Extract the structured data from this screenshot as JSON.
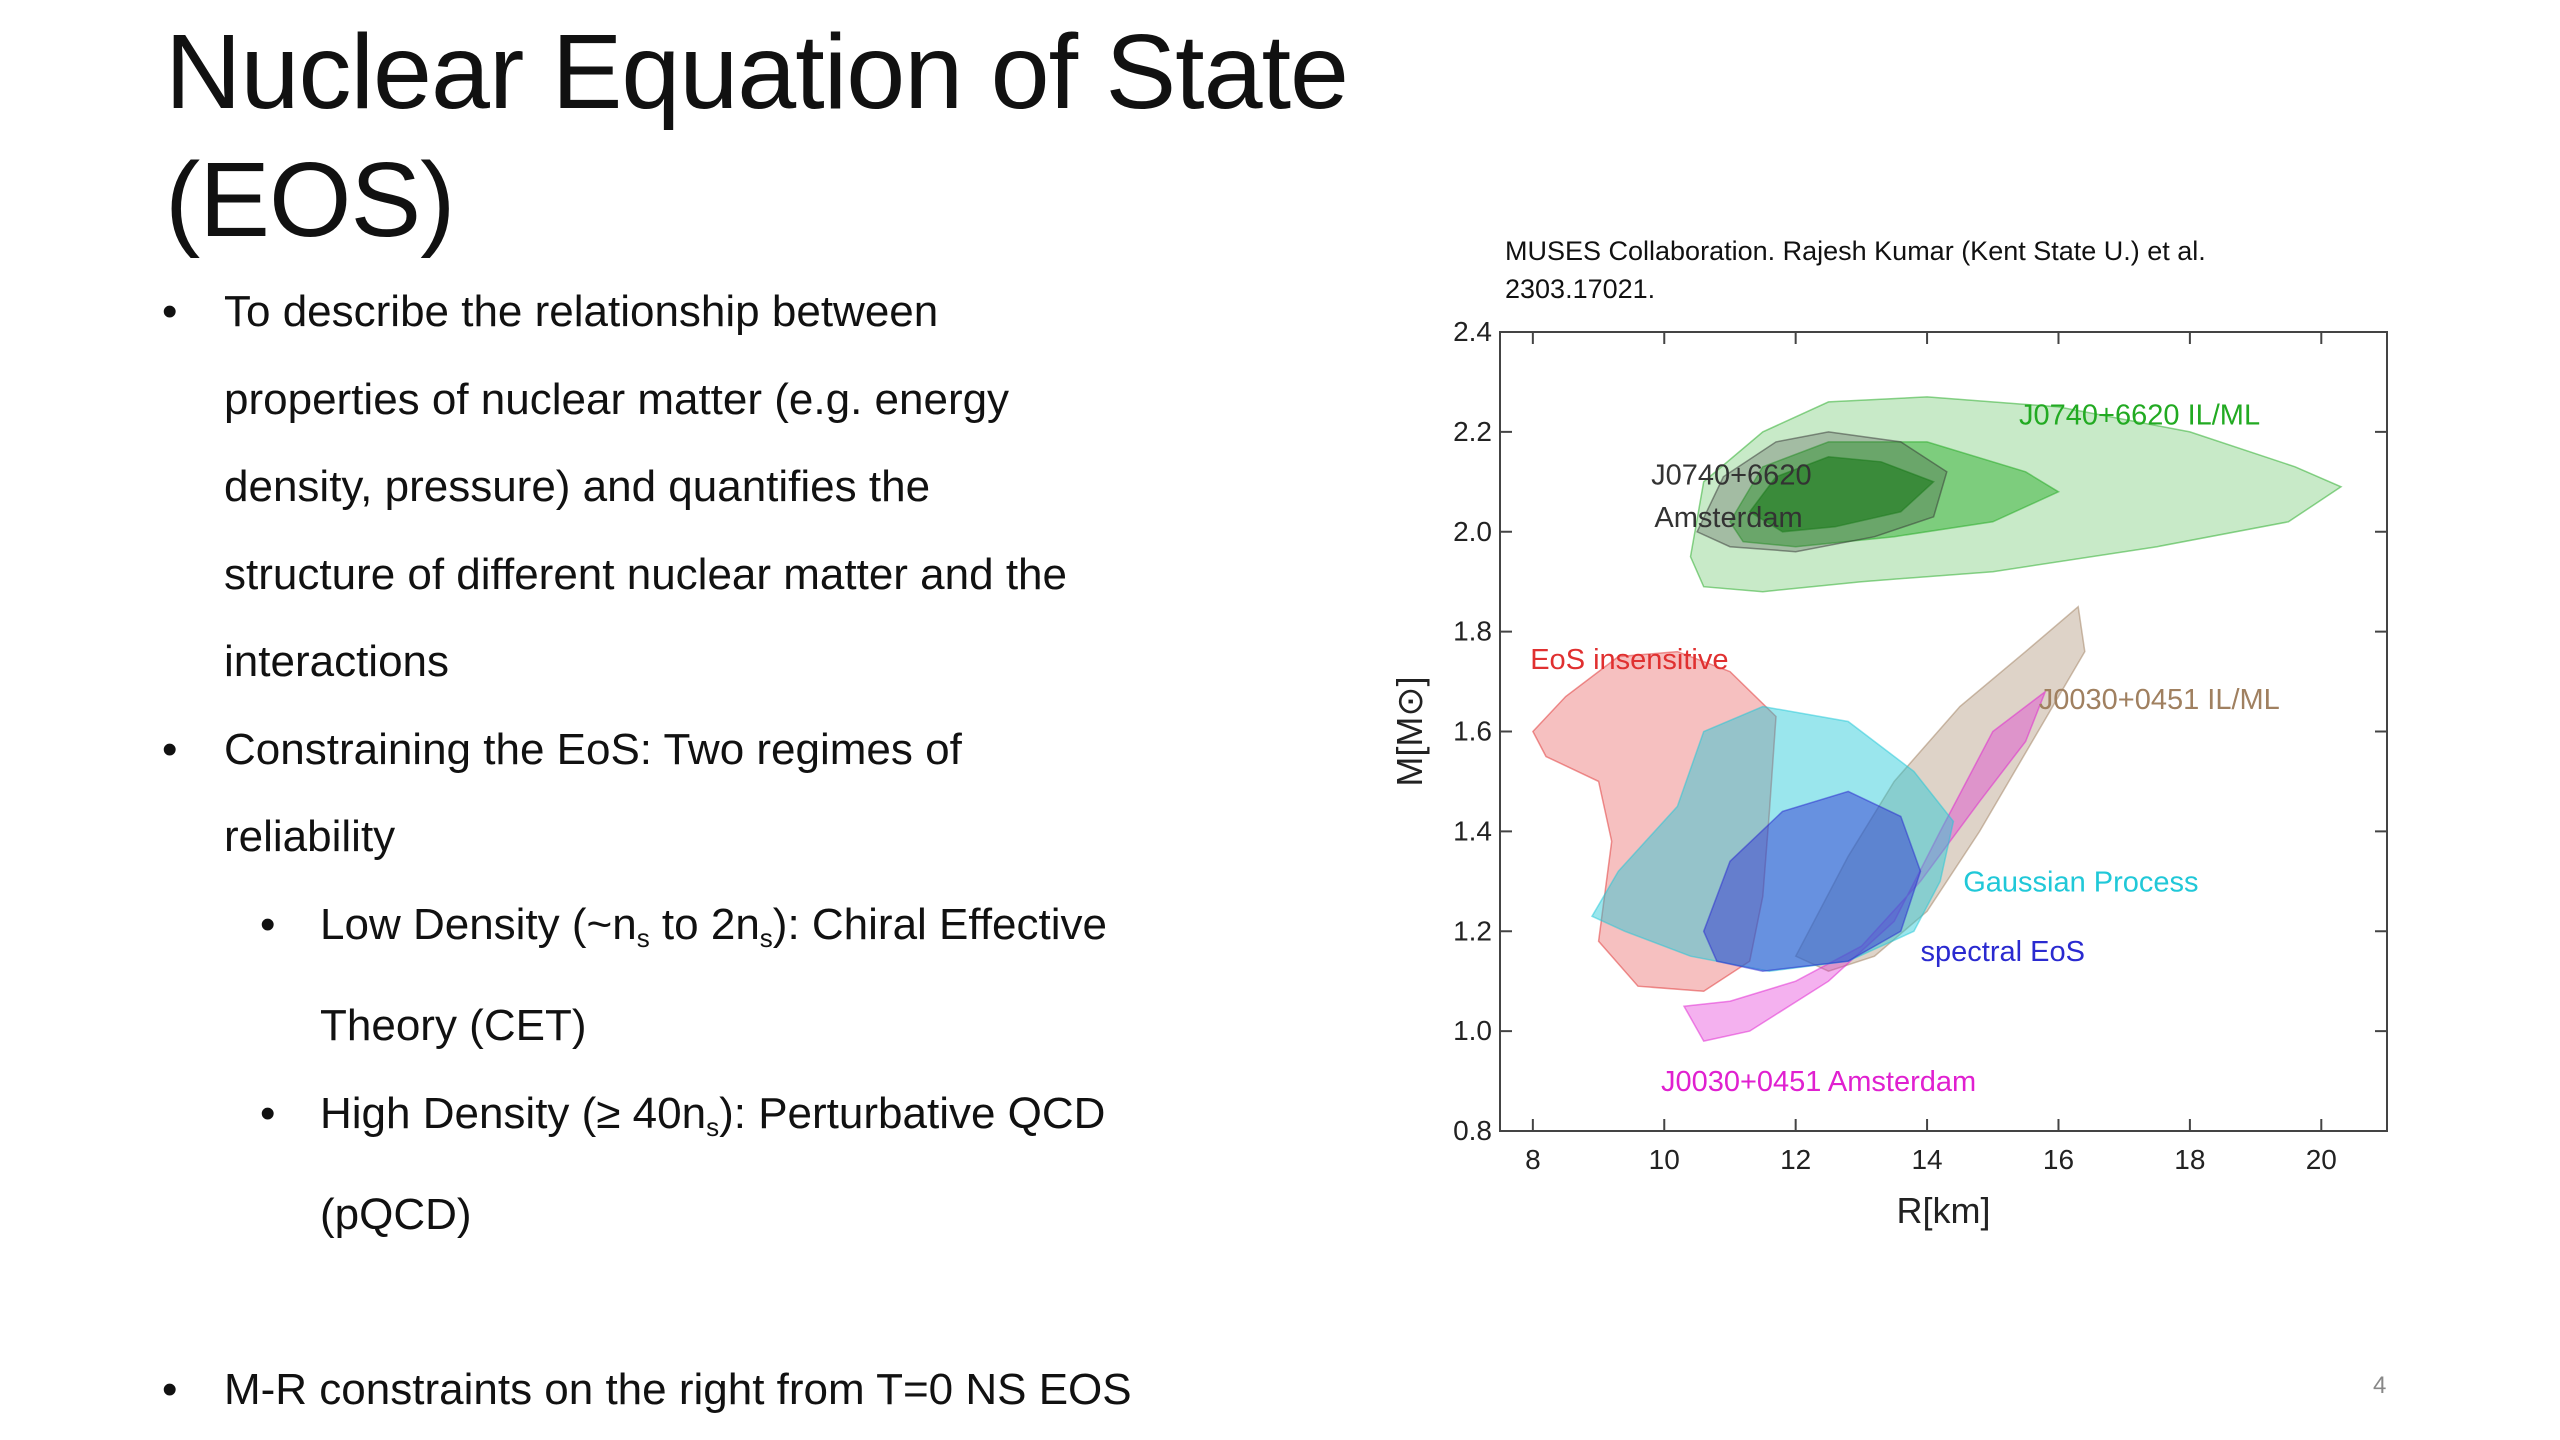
{
  "slide": {
    "title_line1": "Nuclear Equation of State",
    "title_line2": "(EOS)",
    "page_number": "4",
    "credit_line1": "MUSES Collaboration. Rajesh Kumar (Kent State U.) et al.",
    "credit_line2": "2303.17021."
  },
  "bullets": {
    "b1": [
      "To describe the relationship between",
      "properties of nuclear matter (e.g. energy",
      "density, pressure) and quantifies the",
      "structure of different nuclear matter and the",
      "interactions"
    ],
    "b2": [
      "Constraining the EoS: Two regimes of",
      "reliability"
    ],
    "s1_pre": "Low Density (~n",
    "s1_sub1": "s",
    "s1_mid": " to 2n",
    "s1_sub2": "s",
    "s1_post": "): Chiral Effective",
    "s1_line2": "Theory (CET)",
    "s2_pre": "High Density (≥ 40n",
    "s2_sub": "s",
    "s2_post": "): Perturbative QCD",
    "s2_line2": "(pQCD)",
    "b3": "M-R constraints on the right from T=0 NS EOS"
  },
  "chart_data": {
    "type": "contour",
    "xlabel": "R[km]",
    "ylabel": "M[M⊙]",
    "xlim": [
      7.5,
      21
    ],
    "ylim": [
      0.8,
      2.4
    ],
    "x_ticks": [
      "8",
      "10",
      "12",
      "14",
      "16",
      "18",
      "20"
    ],
    "y_ticks": [
      "0.8",
      "1.0",
      "1.2",
      "1.4",
      "1.6",
      "1.8",
      "2.0",
      "2.2",
      "2.4"
    ],
    "labels": {
      "j0740_ilml": "J0740+6620 IL/ML",
      "j0740_ams_1": "J0740+6620",
      "j0740_ams_2": "Amsterdam",
      "eos_insensitive": "EoS insensitive",
      "j0030_ilml": "J0030+0451 IL/ML",
      "gaussian": "Gaussian Process",
      "spectral": "spectral EoS",
      "j0030_ams": "J0030+0451 Amsterdam"
    },
    "colors": {
      "j0740_ilml": "#22aa22",
      "j0740_ams": "#333333",
      "eos_insensitive": "#e03030",
      "j0030_ilml": "#a08060",
      "gaussian": "#20c8d8",
      "spectral": "#2a2ad0",
      "j0030_ams": "#e020d0"
    },
    "regions": [
      {
        "name": "J0740+6620 IL/ML outer",
        "color": "#22aa22",
        "alpha": 0.25,
        "points": [
          [
            10.4,
            1.95
          ],
          [
            10.6,
            2.1
          ],
          [
            11.5,
            2.2
          ],
          [
            12.5,
            2.26
          ],
          [
            14,
            2.27
          ],
          [
            16,
            2.25
          ],
          [
            18,
            2.2
          ],
          [
            19.6,
            2.13
          ],
          [
            20.3,
            2.09
          ],
          [
            19.5,
            2.02
          ],
          [
            17.5,
            1.97
          ],
          [
            15,
            1.92
          ],
          [
            13,
            1.9
          ],
          [
            11.5,
            1.88
          ],
          [
            10.6,
            1.89
          ]
        ]
      },
      {
        "name": "J0740+6620 IL/ML inner",
        "color": "#22aa22",
        "alpha": 0.45,
        "points": [
          [
            11,
            2.02
          ],
          [
            11.5,
            2.13
          ],
          [
            12.5,
            2.18
          ],
          [
            14,
            2.18
          ],
          [
            15.5,
            2.12
          ],
          [
            16,
            2.08
          ],
          [
            15,
            2.02
          ],
          [
            13.5,
            1.99
          ],
          [
            12,
            1.97
          ],
          [
            11.2,
            1.98
          ]
        ]
      },
      {
        "name": "J0740+6620 Amsterdam outer",
        "color": "#333333",
        "alpha": 0.25,
        "points": [
          [
            10.5,
            2.0
          ],
          [
            10.9,
            2.11
          ],
          [
            11.7,
            2.18
          ],
          [
            12.5,
            2.2
          ],
          [
            13.6,
            2.18
          ],
          [
            14.3,
            2.12
          ],
          [
            14.1,
            2.03
          ],
          [
            13.2,
            1.99
          ],
          [
            12,
            1.96
          ],
          [
            11,
            1.97
          ]
        ]
      },
      {
        "name": "J0740+6620 Amsterdam inner",
        "color": "#1a7a1a",
        "alpha": 0.6,
        "points": [
          [
            11.3,
            2.04
          ],
          [
            11.7,
            2.11
          ],
          [
            12.5,
            2.15
          ],
          [
            13.3,
            2.14
          ],
          [
            14.1,
            2.1
          ],
          [
            13.6,
            2.04
          ],
          [
            12.6,
            2.01
          ],
          [
            11.8,
            2.0
          ]
        ]
      },
      {
        "name": "EoS insensitive",
        "color": "#e03030",
        "alpha": 0.3,
        "points": [
          [
            8,
            1.6
          ],
          [
            8.5,
            1.67
          ],
          [
            9.3,
            1.75
          ],
          [
            10.2,
            1.76
          ],
          [
            11,
            1.72
          ],
          [
            11.7,
            1.63
          ],
          [
            11.6,
            1.44
          ],
          [
            11.5,
            1.27
          ],
          [
            11.3,
            1.14
          ],
          [
            10.6,
            1.08
          ],
          [
            9.6,
            1.09
          ],
          [
            9,
            1.18
          ],
          [
            9.2,
            1.38
          ],
          [
            9,
            1.5
          ],
          [
            8.2,
            1.55
          ]
        ]
      },
      {
        "name": "J0030+0451 IL/ML",
        "color": "#a08060",
        "alpha": 0.35,
        "points": [
          [
            12,
            1.15
          ],
          [
            12.8,
            1.35
          ],
          [
            13.5,
            1.5
          ],
          [
            14.5,
            1.65
          ],
          [
            15.5,
            1.76
          ],
          [
            16.3,
            1.85
          ],
          [
            16.4,
            1.76
          ],
          [
            15.6,
            1.58
          ],
          [
            14.8,
            1.4
          ],
          [
            14,
            1.24
          ],
          [
            13.2,
            1.15
          ],
          [
            12.5,
            1.12
          ]
        ]
      },
      {
        "name": "J0030+0451 Amsterdam",
        "color": "#e020d0",
        "alpha": 0.35,
        "points": [
          [
            10.3,
            1.05
          ],
          [
            10.6,
            0.98
          ],
          [
            11.3,
            1.0
          ],
          [
            12.5,
            1.1
          ],
          [
            13.5,
            1.22
          ],
          [
            14.2,
            1.4
          ],
          [
            15,
            1.6
          ],
          [
            15.8,
            1.68
          ],
          [
            15.5,
            1.58
          ],
          [
            14.8,
            1.46
          ],
          [
            13.9,
            1.3
          ],
          [
            13,
            1.17
          ],
          [
            12,
            1.1
          ],
          [
            11,
            1.06
          ]
        ]
      },
      {
        "name": "Gaussian Process",
        "color": "#20c8d8",
        "alpha": 0.45,
        "points": [
          [
            8.9,
            1.23
          ],
          [
            9.3,
            1.32
          ],
          [
            10.2,
            1.45
          ],
          [
            10.6,
            1.6
          ],
          [
            11.5,
            1.65
          ],
          [
            12.8,
            1.62
          ],
          [
            13.8,
            1.52
          ],
          [
            14.4,
            1.42
          ],
          [
            14.2,
            1.3
          ],
          [
            13.8,
            1.2
          ],
          [
            12.8,
            1.14
          ],
          [
            11.6,
            1.12
          ],
          [
            10.4,
            1.15
          ],
          [
            9.4,
            1.2
          ]
        ]
      },
      {
        "name": "spectral EoS",
        "color": "#2a2ad0",
        "alpha": 0.45,
        "points": [
          [
            10.6,
            1.2
          ],
          [
            11,
            1.34
          ],
          [
            11.8,
            1.44
          ],
          [
            12.8,
            1.48
          ],
          [
            13.6,
            1.43
          ],
          [
            13.9,
            1.32
          ],
          [
            13.6,
            1.2
          ],
          [
            12.8,
            1.14
          ],
          [
            11.5,
            1.12
          ],
          [
            10.8,
            1.14
          ]
        ]
      }
    ]
  }
}
